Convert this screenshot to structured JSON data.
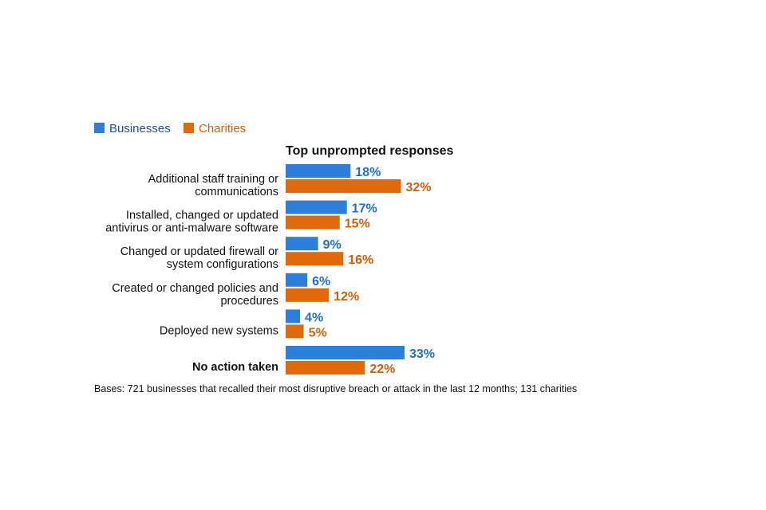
{
  "chart_data": {
    "type": "bar",
    "orientation": "horizontal",
    "subtitle": "Top unprompted responses",
    "categories": [
      [
        "Additional staff training or",
        "communications"
      ],
      [
        "Installed, changed or updated",
        "antivirus or anti-malware software"
      ],
      [
        "Changed or updated firewall or",
        "system configurations"
      ],
      [
        "Created or changed policies and",
        "procedures"
      ],
      [
        "Deployed new systems"
      ],
      [
        "No action taken"
      ]
    ],
    "emphasized_categories": [
      5
    ],
    "series": [
      {
        "name": "Businesses",
        "color": "#2e7fdc",
        "label_color": "#1f6fc4",
        "values": [
          18,
          17,
          9,
          6,
          4,
          33
        ],
        "labels": [
          "18%",
          "17%",
          "9%",
          "6%",
          "4%",
          "33%"
        ]
      },
      {
        "name": "Charities",
        "color": "#e1690a",
        "label_color": "#d45d09",
        "values": [
          32,
          15,
          16,
          12,
          5,
          22
        ],
        "labels": [
          "32%",
          "15%",
          "16%",
          "12%",
          "5%",
          "22%"
        ]
      }
    ],
    "xlim": [
      0,
      33
    ],
    "unit": "%",
    "legend_position": "top-left",
    "grid": false,
    "footnote": "Bases: 721 businesses that recalled their most disruptive breach or attack in the last 12 months; 131 charities"
  },
  "colors": {
    "legend_text_businesses": "#1a4f9c",
    "legend_text_charities": "#d45d09"
  }
}
